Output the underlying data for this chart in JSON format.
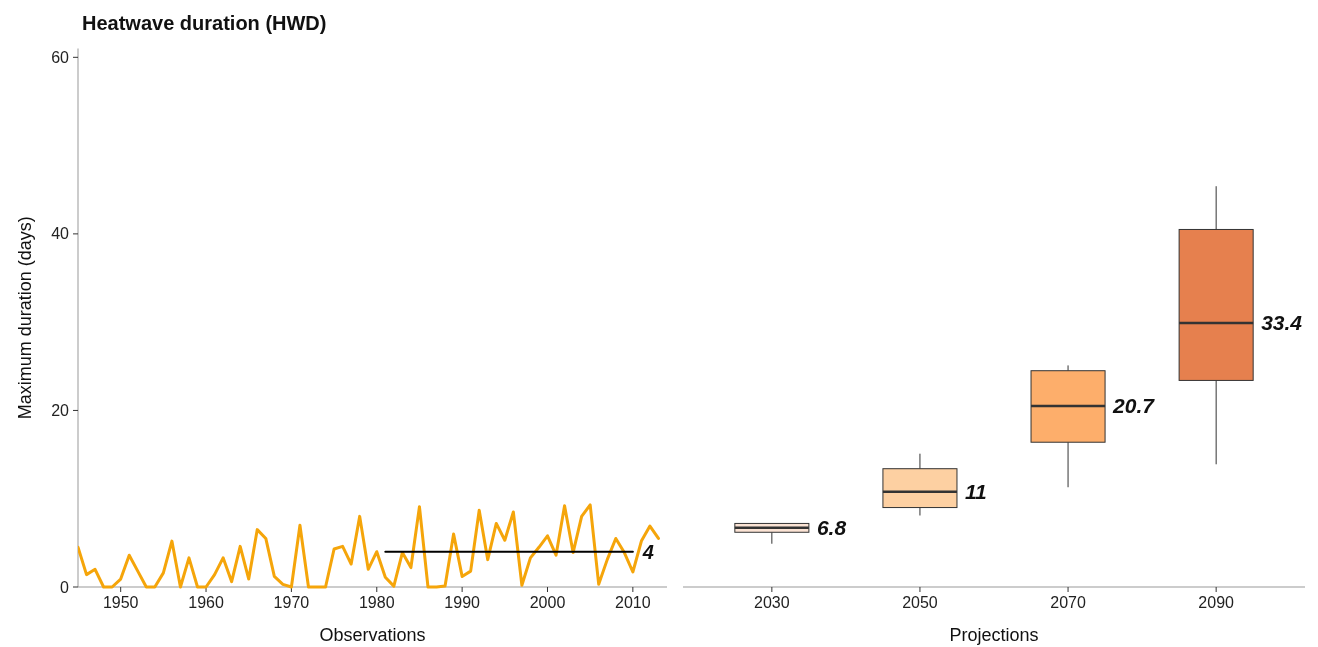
{
  "chart_data": [
    {
      "type": "line",
      "title": "Heatwave duration (HWD)",
      "xlabel": "Observations",
      "ylabel": "Maximum duration (days)",
      "xlim": [
        1945,
        2014
      ],
      "xticks": [
        1950,
        1960,
        1970,
        1980,
        1990,
        2000,
        2010
      ],
      "ylim": [
        0,
        61
      ],
      "yticks": [
        0,
        20,
        40,
        60
      ],
      "series": [
        {
          "color": "#f5a50a",
          "x": [
            1945,
            1946,
            1947,
            1948,
            1949,
            1950,
            1951,
            1952,
            1953,
            1954,
            1955,
            1956,
            1957,
            1958,
            1959,
            1960,
            1961,
            1962,
            1963,
            1964,
            1965,
            1966,
            1967,
            1968,
            1969,
            1970,
            1971,
            1972,
            1973,
            1974,
            1975,
            1976,
            1977,
            1978,
            1979,
            1980,
            1981,
            1982,
            1983,
            1984,
            1985,
            1986,
            1987,
            1988,
            1989,
            1990,
            1991,
            1992,
            1993,
            1994,
            1995,
            1996,
            1997,
            1998,
            1999,
            2000,
            2001,
            2002,
            2003,
            2004,
            2005,
            2006,
            2007,
            2008,
            2009,
            2010,
            2011,
            2012,
            2013
          ],
          "values": [
            4.5,
            1.4,
            2.0,
            0,
            0,
            0.9,
            3.6,
            1.8,
            0,
            0,
            1.6,
            5.2,
            0,
            3.3,
            0,
            0,
            1.4,
            3.3,
            0.6,
            4.6,
            0.9,
            6.5,
            5.5,
            1.2,
            0.3,
            0,
            7.0,
            0,
            0,
            0,
            4.3,
            4.6,
            2.6,
            8.0,
            2.0,
            4.0,
            1.1,
            0.1,
            3.9,
            2.2,
            9.1,
            0,
            0,
            0.1,
            6.0,
            1.2,
            1.8,
            8.7,
            3.1,
            7.2,
            5.3,
            8.5,
            0.2,
            3.3,
            4.5,
            5.8,
            3.6,
            9.2,
            3.9,
            8.0,
            9.3,
            0.3,
            3.1,
            5.5,
            3.9,
            1.7,
            5.2,
            6.9,
            5.5
          ]
        },
        {
          "type": "line",
          "color": "#000000",
          "x": [
            1981,
            2010
          ],
          "values": [
            4,
            4
          ]
        }
      ],
      "annotations": [
        {
          "text": "4",
          "x": 2010,
          "y": 4
        }
      ]
    },
    {
      "type": "box",
      "xlabel": "Projections",
      "categories": [
        "2030",
        "2050",
        "2070",
        "2090"
      ],
      "ylim": [
        0,
        60
      ],
      "yticks": [
        0,
        20,
        40,
        60
      ],
      "tick_labels": "x",
      "colors": [
        "#fbe3d4",
        "#fdd0a2",
        "#fdae6b",
        "#e6804e"
      ],
      "boxes": [
        {
          "low": 4.9,
          "q1": 6.2,
          "median": 6.7,
          "q3": 7.2,
          "high": 7.2
        },
        {
          "low": 8.1,
          "q1": 9.0,
          "median": 10.8,
          "q3": 13.4,
          "high": 15.1
        },
        {
          "low": 11.3,
          "q1": 16.4,
          "median": 20.5,
          "q3": 24.5,
          "high": 25.1
        },
        {
          "low": 13.9,
          "q1": 23.4,
          "median": 29.9,
          "q3": 40.5,
          "high": 45.4
        }
      ],
      "annotations": [
        "6.8",
        "11",
        "20.7",
        "33.4"
      ]
    }
  ]
}
